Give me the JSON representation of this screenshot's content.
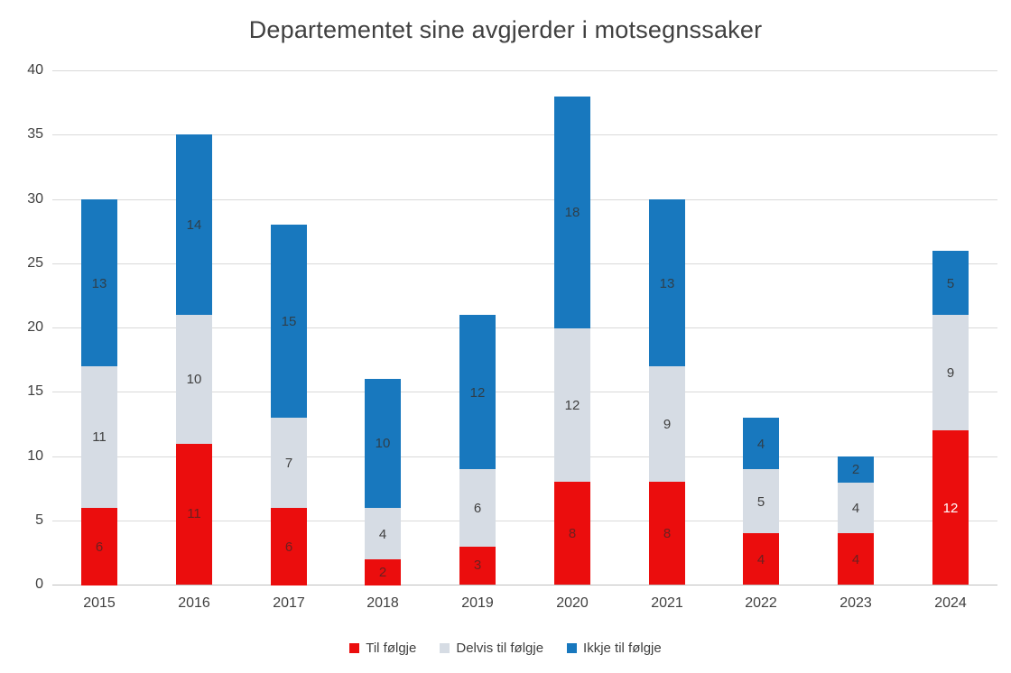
{
  "title": "Departementet sine avgjerder i motsegnssaker",
  "chart_data": {
    "type": "bar",
    "stacked": true,
    "title": "Departementet sine avgjerder i motsegnssaker",
    "categories": [
      "2015",
      "2016",
      "2017",
      "2018",
      "2019",
      "2020",
      "2021",
      "2022",
      "2023",
      "2024"
    ],
    "series": [
      {
        "name": "Til følgje",
        "color": "#eb0d0d",
        "values": [
          6,
          11,
          6,
          2,
          3,
          8,
          8,
          4,
          4,
          12
        ],
        "label_color": "#6b2020",
        "label_color_overrides": {
          "9": "#ffffff"
        }
      },
      {
        "name": "Delvis til følgje",
        "color": "#d6dce4",
        "values": [
          11,
          10,
          7,
          4,
          6,
          12,
          9,
          5,
          4,
          9
        ],
        "label_color": "#404040",
        "label_color_overrides": {}
      },
      {
        "name": "Ikkje til følgje",
        "color": "#1878be",
        "values": [
          13,
          14,
          15,
          10,
          12,
          18,
          13,
          4,
          2,
          5
        ],
        "label_color": "#2f3f4a",
        "label_color_overrides": {}
      }
    ],
    "xlabel": "",
    "ylabel": "",
    "ylim": [
      0,
      40
    ],
    "ytick_step": 5,
    "grid": true,
    "legend_position": "bottom"
  }
}
